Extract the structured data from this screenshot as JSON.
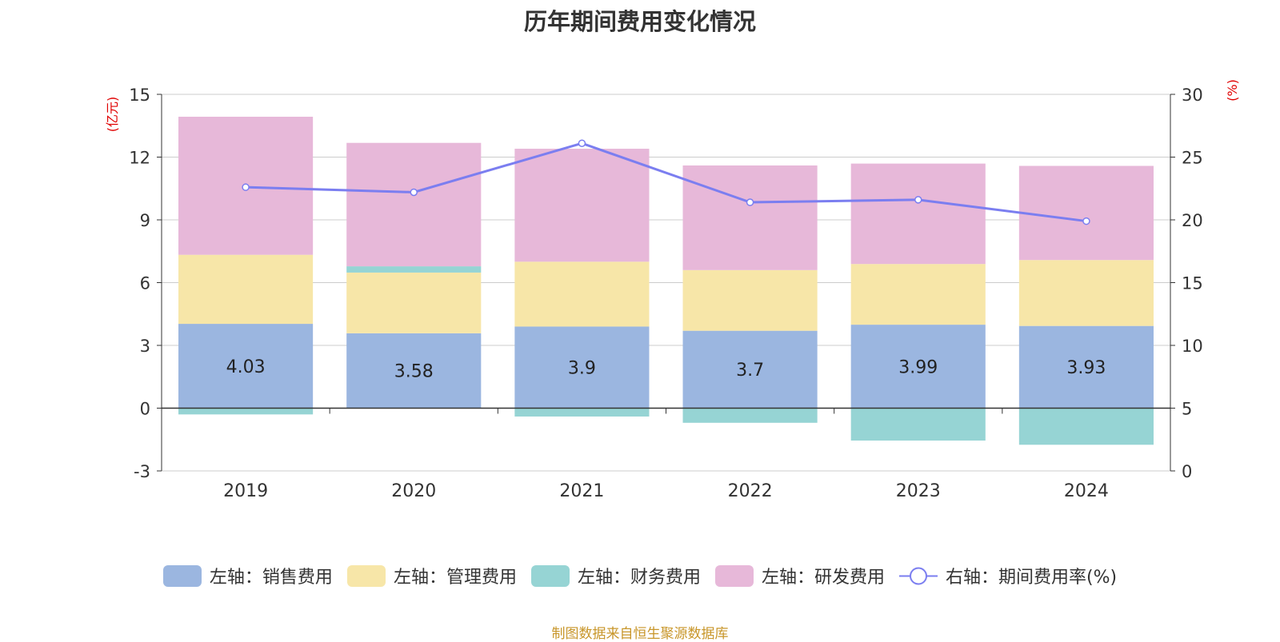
{
  "chart_data": {
    "type": "bar",
    "stacked": true,
    "title": "历年期间费用变化情况",
    "categories": [
      "2019",
      "2020",
      "2021",
      "2022",
      "2023",
      "2024"
    ],
    "left_axis": {
      "label": "(亿元)",
      "ylim": [
        -3,
        15
      ],
      "ticks": [
        -3,
        0,
        3,
        6,
        9,
        12,
        15
      ]
    },
    "right_axis": {
      "label": "(%)",
      "ylim": [
        0,
        30
      ],
      "ticks": [
        0,
        5,
        10,
        15,
        20,
        25,
        30
      ]
    },
    "series": [
      {
        "name": "左轴：销售费用",
        "axis": "left",
        "color": "#9bb6e0",
        "values": [
          4.03,
          3.58,
          3.9,
          3.7,
          3.99,
          3.93
        ],
        "data_labels": [
          "4.03",
          "3.58",
          "3.9",
          "3.7",
          "3.99",
          "3.93"
        ]
      },
      {
        "name": "左轴：管理费用",
        "axis": "left",
        "color": "#f7e6a8",
        "values": [
          3.3,
          2.9,
          3.1,
          2.9,
          2.9,
          3.15
        ]
      },
      {
        "name": "左轴：财务费用",
        "axis": "left",
        "color": "#96d4d4",
        "values": [
          -0.3,
          0.3,
          -0.4,
          -0.7,
          -1.55,
          -1.75
        ]
      },
      {
        "name": "左轴：研发费用",
        "axis": "left",
        "color": "#e7b8d9",
        "values": [
          6.6,
          5.9,
          5.4,
          5.0,
          4.8,
          4.5
        ]
      },
      {
        "name": "右轴：期间费用率(%)",
        "axis": "right",
        "type": "line",
        "color": "#7b7ef0",
        "values": [
          22.6,
          22.2,
          26.1,
          21.4,
          21.6,
          19.9
        ]
      }
    ],
    "legend": "bottom-center",
    "grid": true
  },
  "source": "制图数据来自恒生聚源数据库"
}
